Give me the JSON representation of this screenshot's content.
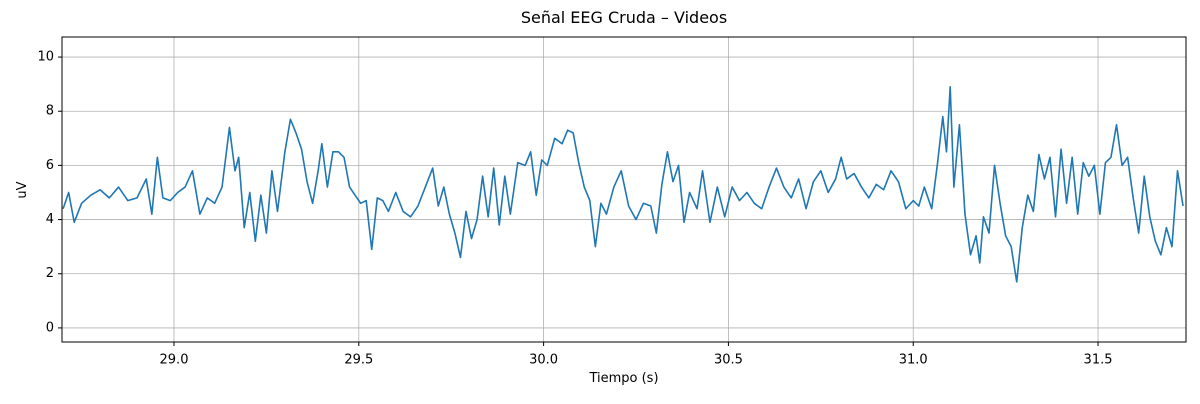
{
  "chart_data": {
    "type": "line",
    "title": "Señal EEG Cruda – Videos",
    "xlabel": "Tiempo (s)",
    "ylabel": "uV",
    "color": "#1f77b4",
    "grid": true,
    "xlim": [
      28.697,
      31.738
    ],
    "ylim": [
      -0.52,
      10.74
    ],
    "xticks": [
      {
        "value": 29,
        "label": "29.0"
      },
      {
        "value": 29.5,
        "label": "29.5"
      },
      {
        "value": 30,
        "label": "30.0"
      },
      {
        "value": 30.5,
        "label": "30.5"
      },
      {
        "value": 31,
        "label": "31.0"
      },
      {
        "value": 31.5,
        "label": "31.5"
      }
    ],
    "yticks": [
      0,
      2,
      4,
      6,
      8,
      10
    ],
    "x": [
      28.7,
      28.715,
      28.73,
      28.75,
      28.775,
      28.8,
      28.825,
      28.85,
      28.875,
      28.9,
      28.925,
      28.94,
      28.955,
      28.97,
      28.99,
      29.01,
      29.03,
      29.05,
      29.07,
      29.09,
      29.11,
      29.13,
      29.15,
      29.165,
      29.175,
      29.19,
      29.205,
      29.22,
      29.235,
      29.25,
      29.265,
      29.28,
      29.3,
      29.315,
      29.33,
      29.345,
      29.36,
      29.375,
      29.39,
      29.4,
      29.415,
      29.43,
      29.445,
      29.46,
      29.475,
      29.49,
      29.505,
      29.52,
      29.535,
      29.55,
      29.565,
      29.58,
      29.6,
      29.62,
      29.64,
      29.66,
      29.68,
      29.7,
      29.715,
      29.73,
      29.745,
      29.76,
      29.775,
      29.79,
      29.805,
      29.82,
      29.835,
      29.85,
      29.865,
      29.88,
      29.895,
      29.91,
      29.93,
      29.95,
      29.965,
      29.98,
      29.995,
      30.01,
      30.03,
      30.05,
      30.065,
      30.08,
      30.095,
      30.11,
      30.125,
      30.14,
      30.155,
      30.17,
      30.19,
      30.21,
      30.23,
      30.25,
      30.27,
      30.29,
      30.305,
      30.32,
      30.335,
      30.35,
      30.365,
      30.38,
      30.395,
      30.415,
      30.43,
      30.45,
      30.47,
      30.49,
      30.51,
      30.53,
      30.55,
      30.57,
      30.59,
      30.61,
      30.63,
      30.65,
      30.67,
      30.69,
      30.71,
      30.73,
      30.75,
      30.77,
      30.79,
      30.805,
      30.82,
      30.84,
      30.86,
      30.88,
      30.9,
      30.92,
      30.94,
      30.96,
      30.98,
      31.0,
      31.015,
      31.03,
      31.05,
      31.065,
      31.08,
      31.09,
      31.1,
      31.11,
      31.125,
      31.14,
      31.155,
      31.17,
      31.18,
      31.19,
      31.205,
      31.22,
      31.235,
      31.25,
      31.265,
      31.28,
      31.295,
      31.31,
      31.325,
      31.34,
      31.355,
      31.37,
      31.385,
      31.4,
      31.415,
      31.43,
      31.445,
      31.46,
      31.475,
      31.49,
      31.505,
      31.52,
      31.535,
      31.55,
      31.565,
      31.58,
      31.595,
      31.61,
      31.625,
      31.64,
      31.655,
      31.67,
      31.685,
      31.7,
      31.715,
      31.73
    ],
    "values": [
      4.4,
      5.0,
      3.9,
      4.6,
      4.9,
      5.1,
      4.8,
      5.2,
      4.7,
      4.8,
      5.5,
      4.2,
      6.3,
      4.8,
      4.7,
      5.0,
      5.2,
      5.8,
      4.2,
      4.8,
      4.6,
      5.2,
      7.4,
      5.8,
      6.3,
      3.7,
      5.0,
      3.2,
      4.9,
      3.5,
      5.8,
      4.3,
      6.5,
      7.7,
      7.2,
      6.6,
      5.4,
      4.6,
      5.8,
      6.8,
      5.2,
      6.5,
      6.5,
      6.3,
      5.2,
      4.9,
      4.6,
      4.7,
      2.9,
      4.8,
      4.7,
      4.3,
      5.0,
      4.3,
      4.1,
      4.5,
      5.2,
      5.9,
      4.5,
      5.2,
      4.2,
      3.5,
      2.6,
      4.3,
      3.3,
      4.0,
      5.6,
      4.1,
      5.9,
      3.8,
      5.6,
      4.2,
      6.1,
      6.0,
      6.5,
      4.9,
      6.2,
      6.0,
      7.0,
      6.8,
      7.3,
      7.2,
      6.1,
      5.2,
      4.7,
      3.0,
      4.6,
      4.2,
      5.2,
      5.8,
      4.5,
      4.0,
      4.6,
      4.5,
      3.5,
      5.3,
      6.5,
      5.4,
      6.0,
      3.9,
      5.0,
      4.4,
      5.8,
      3.9,
      5.2,
      4.1,
      5.2,
      4.7,
      5.0,
      4.6,
      4.4,
      5.2,
      5.9,
      5.2,
      4.8,
      5.5,
      4.4,
      5.4,
      5.8,
      5.0,
      5.5,
      6.3,
      5.5,
      5.7,
      5.2,
      4.8,
      5.3,
      5.1,
      5.8,
      5.4,
      4.4,
      4.7,
      4.5,
      5.2,
      4.4,
      6.0,
      7.8,
      6.5,
      8.9,
      5.2,
      7.5,
      4.2,
      2.7,
      3.4,
      2.4,
      4.1,
      3.5,
      6.0,
      4.6,
      3.4,
      3.0,
      1.7,
      3.7,
      4.9,
      4.3,
      6.4,
      5.5,
      6.3,
      4.1,
      6.6,
      4.6,
      6.3,
      4.2,
      6.1,
      5.6,
      6.0,
      4.2,
      6.1,
      6.3,
      7.5,
      6.0,
      6.3,
      4.8,
      3.5,
      5.6,
      4.1,
      3.2,
      2.7,
      3.7,
      3.0,
      5.8,
      4.5
    ]
  }
}
